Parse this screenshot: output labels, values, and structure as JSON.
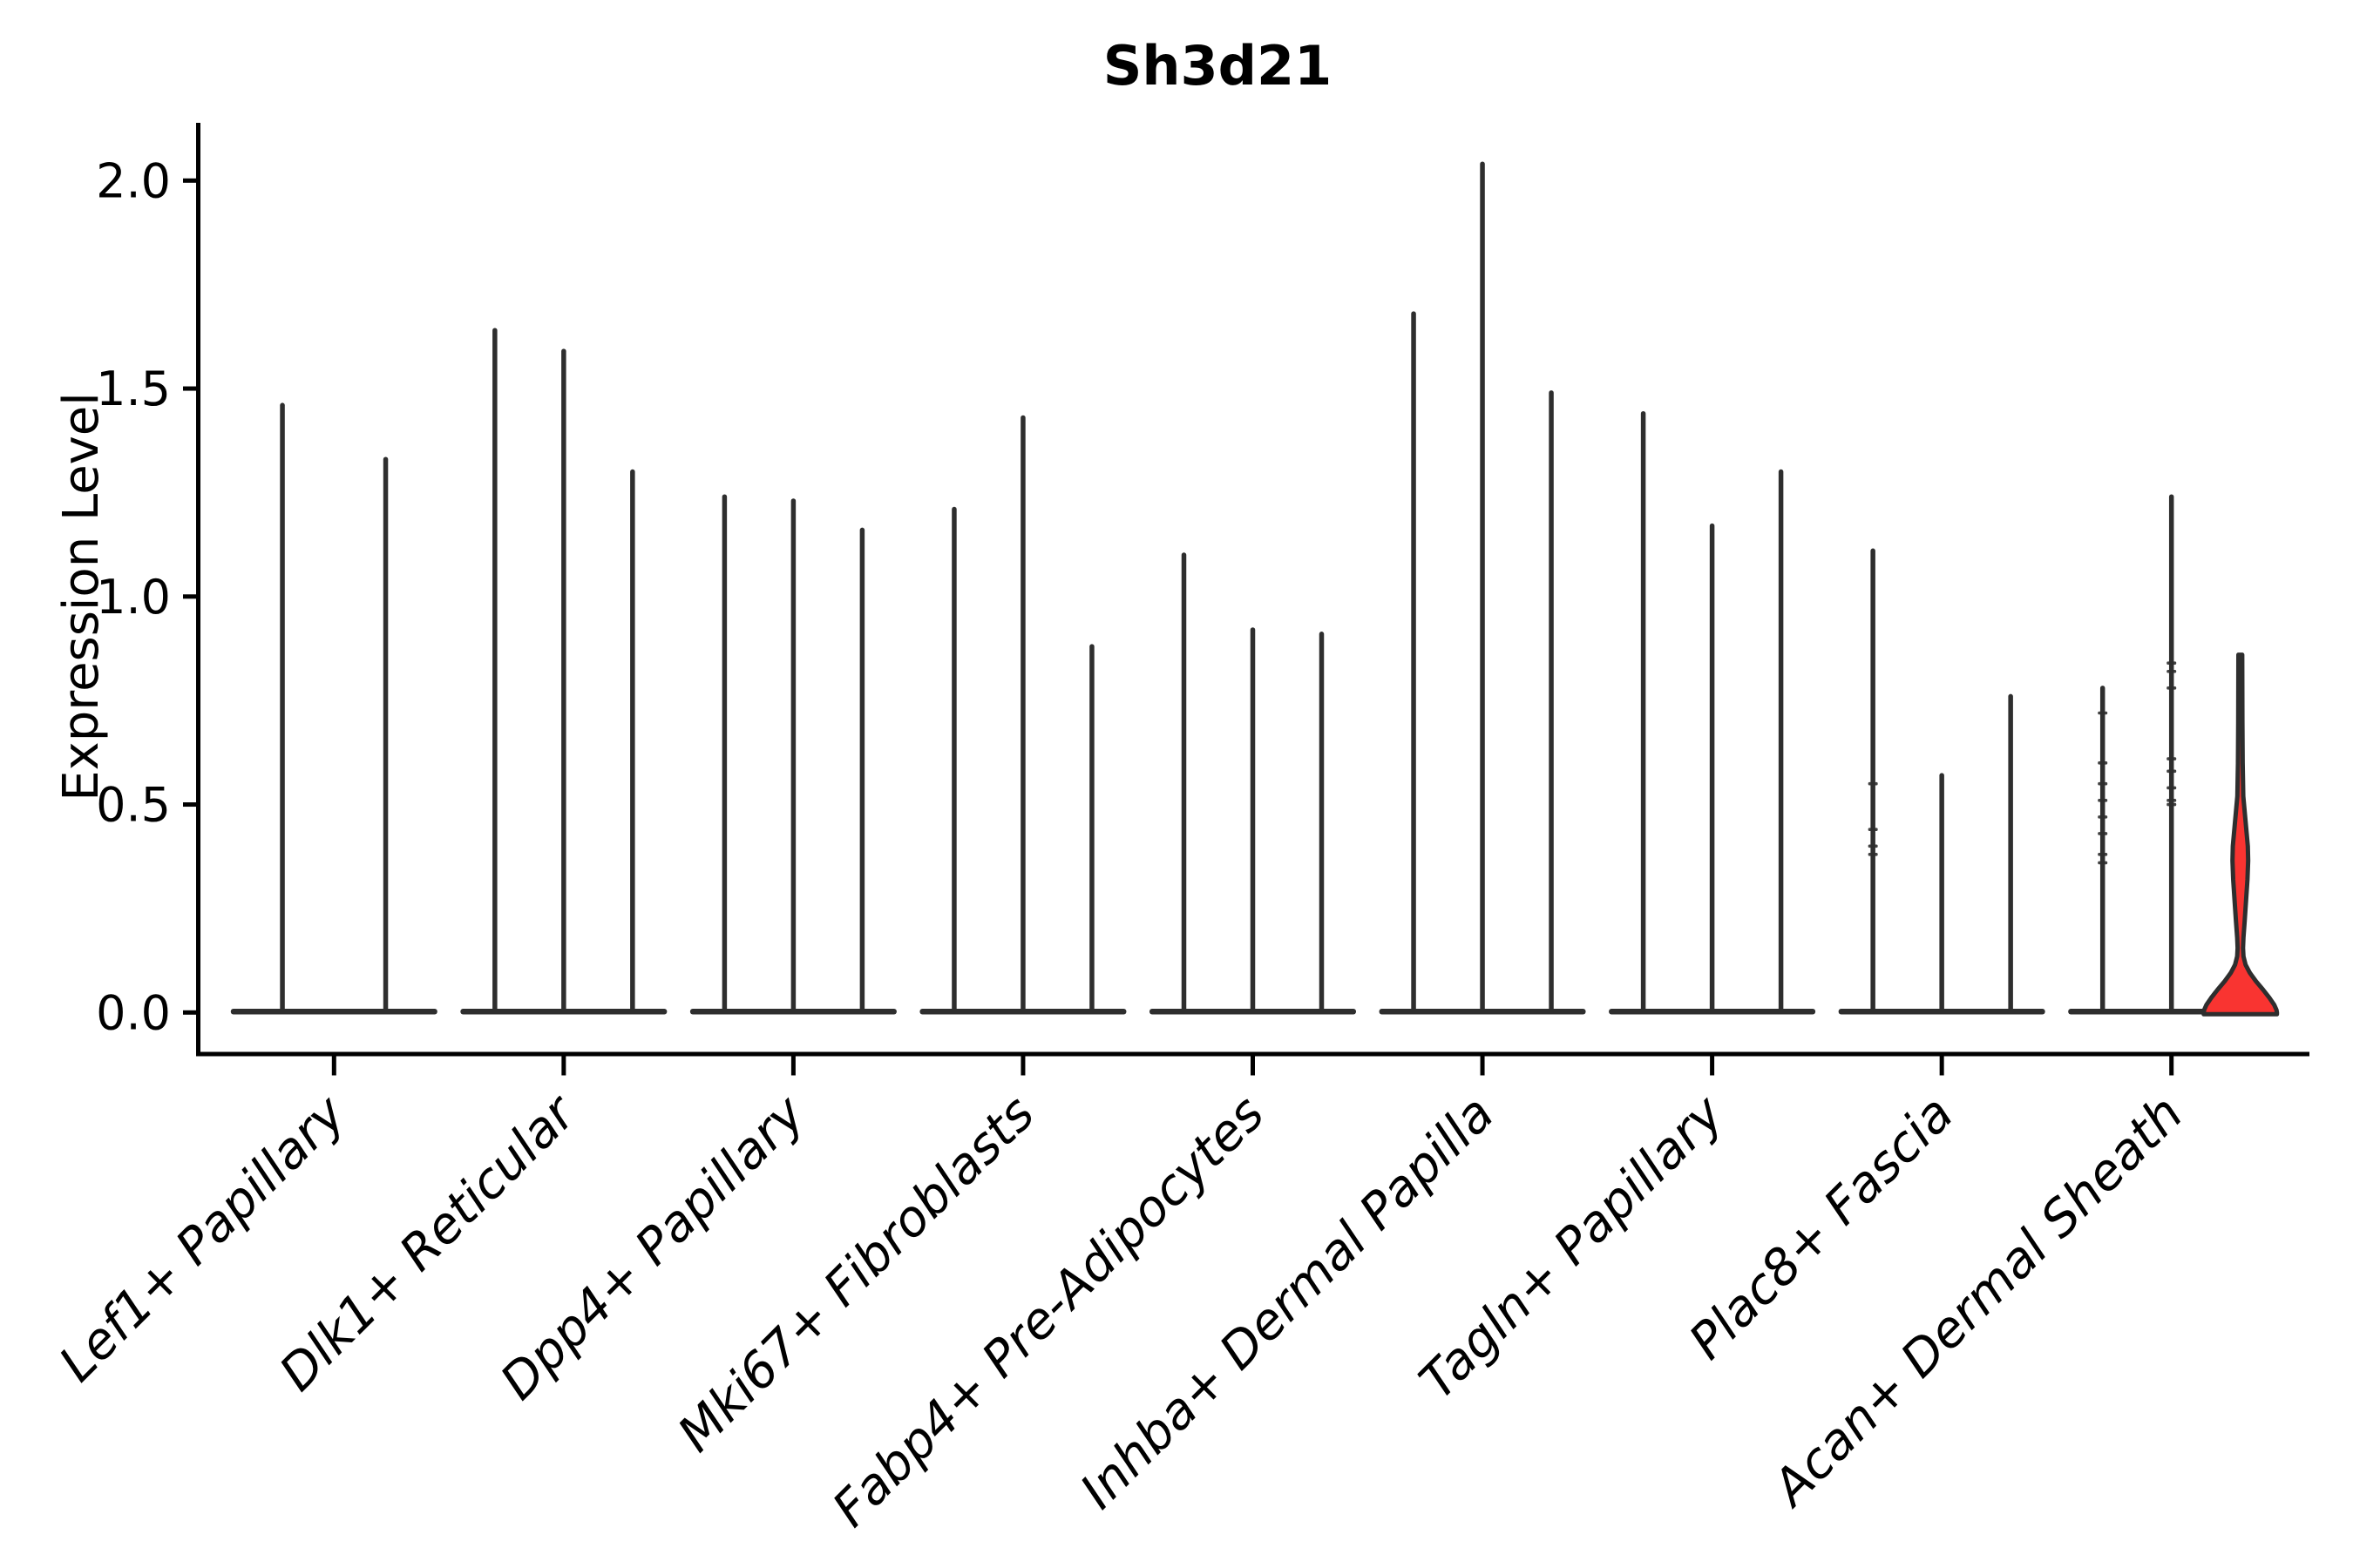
{
  "title": "Sh3d21",
  "y_axis": {
    "label": "Expression Level",
    "tick_labels": [
      "0.0",
      "0.5",
      "1.0",
      "1.5",
      "2.0"
    ]
  },
  "chart_data": {
    "type": "violin",
    "title": "Sh3d21",
    "ylabel": "Expression Level",
    "xlabel": "",
    "ylim": [
      0,
      2.1
    ],
    "yticks": [
      0.0,
      0.5,
      1.0,
      1.5,
      2.0
    ],
    "grid": false,
    "legend": "none",
    "categories": [
      "Lef1+ Papillary",
      "Dlk1+ Reticular",
      "Dpp4+ Papillary",
      "Mki67+ Fibroblasts",
      "Fabp4+ Pre-Adipocytes",
      "Inhba+ Dermal Papilla",
      "Tagln+ Papillary",
      "Plac8+ Fascia",
      "Acan+ Dermal Sheath"
    ],
    "description": "Violin plot of Sh3d21 expression; most violins collapse to a flat base at 0 with a thin spike to the maximum expression value. Only the third violin of Acan+ Dermal Sheath has a visible red-filled body.",
    "groups": [
      {
        "category": "Lef1+ Papillary",
        "violins": [
          {
            "max": 1.46
          },
          {
            "max": 1.33
          }
        ]
      },
      {
        "category": "Dlk1+ Reticular",
        "violins": [
          {
            "max": 1.64
          },
          {
            "max": 1.59
          },
          {
            "max": 1.3
          }
        ]
      },
      {
        "category": "Dpp4+ Papillary",
        "violins": [
          {
            "max": 1.24
          },
          {
            "max": 1.23
          },
          {
            "max": 1.16
          }
        ]
      },
      {
        "category": "Mki67+ Fibroblasts",
        "violins": [
          {
            "max": 1.21
          },
          {
            "max": 1.43
          },
          {
            "max": 0.88
          }
        ]
      },
      {
        "category": "Fabp4+ Pre-Adipocytes",
        "violins": [
          {
            "max": 1.1
          },
          {
            "max": 0.92
          },
          {
            "max": 0.91
          }
        ]
      },
      {
        "category": "Inhba+ Dermal Papilla",
        "violins": [
          {
            "max": 1.68
          },
          {
            "max": 2.04
          },
          {
            "max": 1.49
          }
        ]
      },
      {
        "category": "Tagln+ Papillary",
        "violins": [
          {
            "max": 1.44
          },
          {
            "max": 1.17
          },
          {
            "max": 1.3
          }
        ]
      },
      {
        "category": "Plac8+ Fascia",
        "violins": [
          {
            "max": 1.11,
            "marks": [
              0.55,
              0.44,
              0.4,
              0.38
            ]
          },
          {
            "max": 0.57
          },
          {
            "max": 0.76
          }
        ]
      },
      {
        "category": "Acan+ Dermal Sheath",
        "violins": [
          {
            "max": 0.78,
            "marks": [
              0.72,
              0.6,
              0.55,
              0.51,
              0.47,
              0.43,
              0.38,
              0.36
            ]
          },
          {
            "max": 1.24,
            "marks": [
              0.84,
              0.82,
              0.78,
              0.61,
              0.58,
              0.54,
              0.51,
              0.5
            ]
          },
          {
            "max": 0.86,
            "highlighted": true,
            "profile": [
              [
                0.86,
                2.2
              ],
              [
                0.7,
                2.4
              ],
              [
                0.6,
                2.7
              ],
              [
                0.52,
                3.4
              ],
              [
                0.46,
                6.0
              ],
              [
                0.4,
                8.6
              ],
              [
                0.365,
                9.0
              ],
              [
                0.32,
                8.2
              ],
              [
                0.27,
                6.6
              ],
              [
                0.22,
                5.0
              ],
              [
                0.18,
                3.6
              ],
              [
                0.155,
                3.1
              ],
              [
                0.135,
                3.6
              ],
              [
                0.115,
                6.0
              ],
              [
                0.095,
                11
              ],
              [
                0.075,
                18
              ],
              [
                0.055,
                26
              ],
              [
                0.035,
                33.5
              ],
              [
                0.018,
                39
              ],
              [
                0.006,
                41.5
              ],
              [
                0.0,
                42
              ]
            ]
          }
        ]
      }
    ],
    "colors": {
      "violin_stroke": "#2E2E2E",
      "highlight_fill": "#F93431",
      "axis": "#000000",
      "background": "#FFFFFF"
    }
  }
}
